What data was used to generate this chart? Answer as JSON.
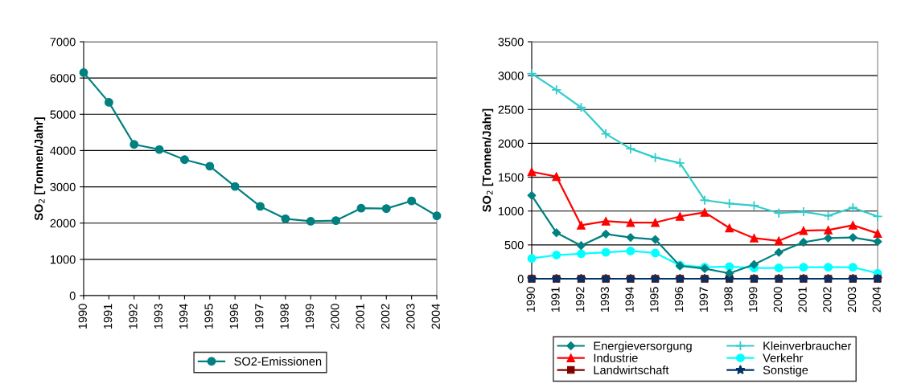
{
  "chart_data": [
    {
      "type": "line",
      "ylabel": "SO$_{2}$ [Tonnen/Jahr]",
      "categories": [
        "1990",
        "1991",
        "1992",
        "1993",
        "1994",
        "1995",
        "1996",
        "1997",
        "1998",
        "1999",
        "2000",
        "2001",
        "2002",
        "2003",
        "2004"
      ],
      "ylim": [
        0,
        7000
      ],
      "yticks": [
        0,
        1000,
        2000,
        3000,
        4000,
        5000,
        6000,
        7000
      ],
      "grid": "y",
      "legend": "bottom",
      "series": [
        {
          "name": "SO2-Emissionen",
          "color": "#008080",
          "marker": "circle",
          "values": [
            6150,
            5330,
            4170,
            4030,
            3750,
            3570,
            3010,
            2460,
            2120,
            2050,
            2070,
            2410,
            2400,
            2610,
            2200
          ]
        }
      ]
    },
    {
      "type": "line",
      "ylabel": "SO$_{2}$ [Tonnen/Jahr]",
      "categories": [
        "1990",
        "1991",
        "1992",
        "1993",
        "1994",
        "1995",
        "1996",
        "1997",
        "1998",
        "1999",
        "2000",
        "2001",
        "2002",
        "2003",
        "2004"
      ],
      "ylim": [
        0,
        3500
      ],
      "yticks": [
        0,
        500,
        1000,
        1500,
        2000,
        2500,
        3000,
        3500
      ],
      "grid": "y",
      "legend": "bottom",
      "series": [
        {
          "name": "Energieversorgung",
          "color": "#008080",
          "marker": "diamond",
          "values": [
            1230,
            680,
            490,
            660,
            610,
            580,
            190,
            150,
            80,
            210,
            390,
            540,
            600,
            610,
            550
          ]
        },
        {
          "name": "Kleinverbraucher",
          "color": "#33cccc",
          "marker": "cross",
          "values": [
            3030,
            2790,
            2530,
            2140,
            1920,
            1790,
            1710,
            1160,
            1110,
            1080,
            970,
            990,
            930,
            1050,
            920
          ]
        },
        {
          "name": "Industrie",
          "color": "#ff0000",
          "marker": "triangle",
          "values": [
            1580,
            1510,
            790,
            850,
            830,
            830,
            920,
            980,
            750,
            600,
            560,
            710,
            720,
            790,
            670
          ]
        },
        {
          "name": "Verkehr",
          "color": "#00ffff",
          "marker": "circle",
          "values": [
            300,
            350,
            370,
            390,
            410,
            380,
            200,
            170,
            180,
            160,
            160,
            170,
            170,
            170,
            80
          ]
        },
        {
          "name": "Landwirtschaft",
          "color": "#800000",
          "marker": "square",
          "values": [
            0,
            0,
            0,
            0,
            0,
            0,
            0,
            0,
            0,
            0,
            0,
            0,
            0,
            0,
            0
          ]
        },
        {
          "name": "Sonstige",
          "color": "#003366",
          "marker": "star",
          "values": [
            0,
            0,
            0,
            0,
            0,
            0,
            0,
            0,
            0,
            0,
            0,
            0,
            0,
            0,
            0
          ]
        }
      ]
    }
  ]
}
